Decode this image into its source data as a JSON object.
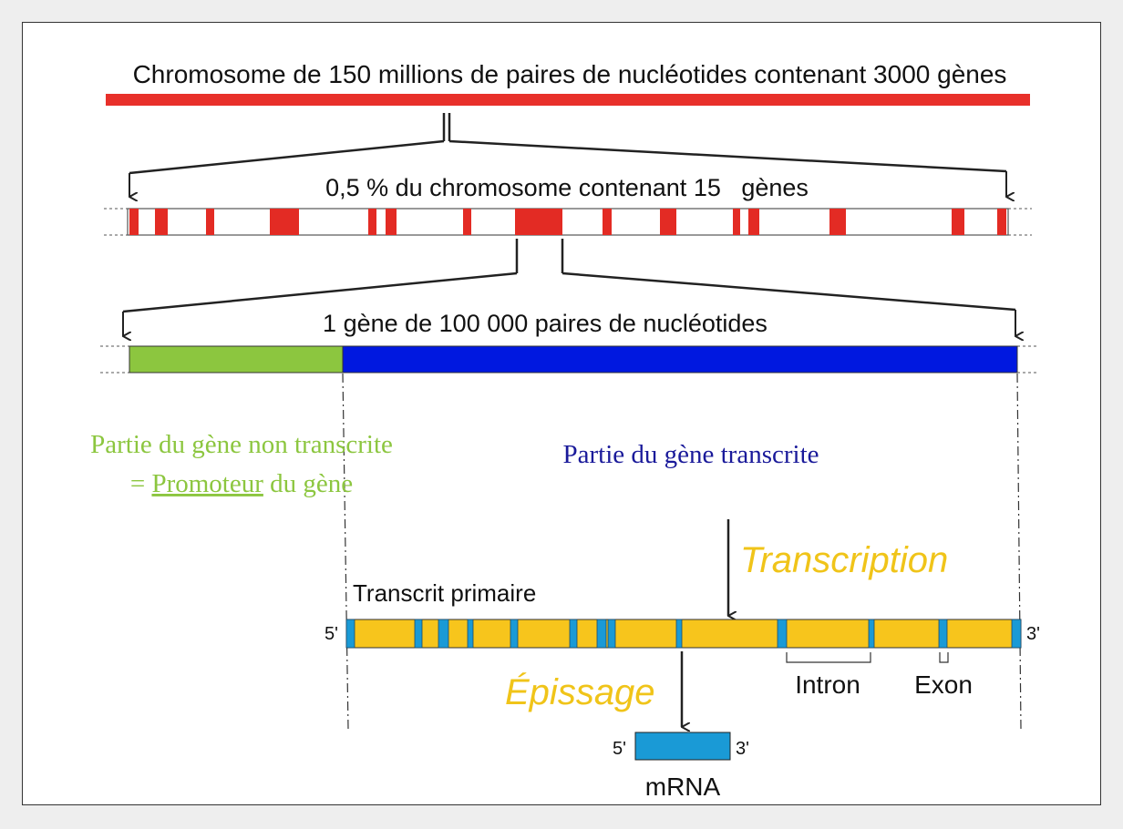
{
  "title": "Chromosome de 150 millions de paires de nucléotides contenant 3000 gènes",
  "segment_label": "0,5 % du chromosome contenant 15   gènes",
  "gene_label": "1 gène de 100 000 paires de nucléotides",
  "promoter": {
    "line1": "Partie du gène non transcrite",
    "line2_prefix": "= ",
    "line2_word": "Promoteur",
    "line2_suffix": " du gène"
  },
  "transcribed_label": "Partie du gène transcrite",
  "transcription_label": "Transcription",
  "primary_transcript_label": "Transcrit primaire",
  "splicing_label": "Épissage",
  "prime5": "5'",
  "prime3": "3'",
  "intron_label": "Intron",
  "exon_label": "Exon",
  "mrna_label": "mRNA",
  "colors": {
    "chromosome": "#e8302a",
    "gene_marks": "#e32b24",
    "promoter": "#8cc63f",
    "transcribed": "#0018e0",
    "promoter_text": "#8cc63f",
    "transcribed_text": "#1a1a9a",
    "transcript": "#f7c51c",
    "exon": "#1a9ad6",
    "process_text": "#f0c419"
  }
}
